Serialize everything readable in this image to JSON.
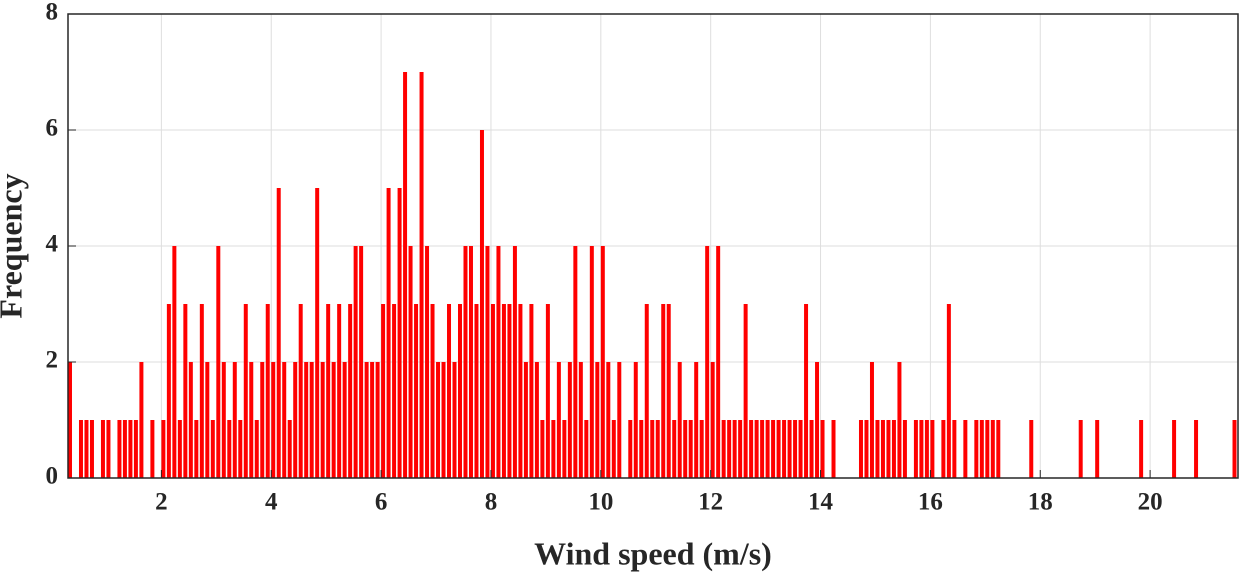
{
  "chart_data": {
    "type": "histogram",
    "xlabel": "Wind speed (m/s)",
    "ylabel": "Frequency",
    "color": "#ff0000",
    "bins": [
      0.3,
      0.4,
      0.5,
      0.6,
      0.7,
      0.8,
      0.9,
      1.0,
      1.1,
      1.2,
      1.3,
      1.4,
      1.5,
      1.6,
      1.7,
      1.8,
      1.9,
      2.0,
      2.1,
      2.2,
      2.3,
      2.4,
      2.5,
      2.6,
      2.7,
      2.8,
      2.9,
      3.0,
      3.1,
      3.2,
      3.3,
      3.4,
      3.5,
      3.6,
      3.7,
      3.8,
      3.9,
      4.0,
      4.1,
      4.2,
      4.3,
      4.4,
      4.5,
      4.6,
      4.7,
      4.8,
      4.9,
      5.0,
      5.1,
      5.2,
      5.3,
      5.4,
      5.5,
      5.6,
      5.7,
      5.8,
      5.9,
      6.0,
      6.1,
      6.2,
      6.3,
      6.4,
      6.5,
      6.6,
      6.7,
      6.8,
      6.9,
      7.0,
      7.1,
      7.2,
      7.3,
      7.4,
      7.5,
      7.6,
      7.7,
      7.8,
      7.9,
      8.0,
      8.1,
      8.2,
      8.3,
      8.4,
      8.5,
      8.6,
      8.7,
      8.8,
      8.9,
      9.0,
      9.1,
      9.2,
      9.3,
      9.4,
      9.5,
      9.6,
      9.7,
      9.8,
      9.9,
      10.0,
      10.1,
      10.2,
      10.3,
      10.4,
      10.5,
      10.6,
      10.7,
      10.8,
      10.9,
      11.0,
      11.1,
      11.2,
      11.3,
      11.4,
      11.5,
      11.6,
      11.7,
      11.8,
      11.9,
      12.0,
      12.1,
      12.2,
      12.3,
      12.4,
      12.5,
      12.6,
      12.7,
      12.8,
      12.9,
      13.0,
      13.1,
      13.2,
      13.3,
      13.4,
      13.5,
      13.6,
      13.7,
      13.8,
      13.9,
      14.0,
      14.1,
      14.2,
      14.3,
      14.4,
      14.5,
      14.6,
      14.7,
      14.8,
      14.9,
      15.0,
      15.1,
      15.2,
      15.3,
      15.4,
      15.5,
      15.6,
      15.7,
      15.8,
      15.9,
      16.0,
      16.1,
      16.2,
      16.3,
      16.4,
      16.5,
      16.6,
      16.7,
      16.8,
      16.9,
      17.0,
      17.1,
      17.2,
      17.3,
      17.4,
      17.5,
      17.6,
      17.7,
      17.8,
      17.9,
      18.0,
      18.1,
      18.2,
      18.3,
      18.4,
      18.5,
      18.6,
      18.7,
      18.8,
      18.9,
      19.0,
      19.1,
      19.2,
      19.3,
      19.4,
      19.5,
      19.6,
      19.7,
      19.8,
      19.9,
      20.0,
      20.1,
      20.2,
      20.3,
      20.4,
      20.5,
      20.6,
      20.7,
      20.8,
      20.9,
      21.0,
      21.1,
      21.2,
      21.3,
      21.4,
      21.5,
      21.6
    ],
    "counts": [
      2,
      0,
      1,
      1,
      1,
      0,
      1,
      1,
      0,
      1,
      1,
      1,
      1,
      2,
      0,
      1,
      0,
      1,
      3,
      4,
      1,
      3,
      2,
      1,
      3,
      2,
      1,
      4,
      2,
      1,
      2,
      1,
      3,
      2,
      1,
      2,
      3,
      2,
      5,
      2,
      1,
      2,
      3,
      2,
      2,
      5,
      2,
      3,
      2,
      3,
      2,
      3,
      4,
      4,
      2,
      2,
      2,
      3,
      5,
      3,
      5,
      7,
      4,
      3,
      7,
      4,
      3,
      2,
      2,
      3,
      2,
      3,
      4,
      4,
      3,
      6,
      4,
      3,
      4,
      3,
      3,
      4,
      3,
      2,
      3,
      2,
      1,
      3,
      1,
      2,
      1,
      2,
      4,
      2,
      1,
      4,
      2,
      4,
      2,
      1,
      2,
      0,
      1,
      2,
      1,
      3,
      1,
      1,
      3,
      3,
      1,
      2,
      1,
      1,
      2,
      1,
      4,
      2,
      4,
      1,
      1,
      1,
      1,
      3,
      1,
      1,
      1,
      1,
      1,
      1,
      1,
      1,
      1,
      1,
      3,
      1,
      2,
      1,
      0,
      1,
      0,
      0,
      0,
      0,
      1,
      1,
      2,
      1,
      1,
      1,
      1,
      2,
      1,
      0,
      1,
      1,
      1,
      1,
      0,
      1,
      3,
      1,
      0,
      1,
      0,
      1,
      1,
      1,
      1,
      1,
      0,
      0,
      0,
      0,
      0,
      1,
      0,
      0,
      0,
      0,
      0,
      0,
      0,
      0,
      1,
      0,
      0,
      1,
      0,
      0,
      0,
      0,
      0,
      0,
      0,
      1,
      0,
      0,
      0,
      0,
      0,
      1,
      0,
      0,
      0,
      1,
      0,
      0,
      0,
      0,
      0,
      0,
      1
    ],
    "xlim": [
      0.3,
      21.6
    ],
    "ylim": [
      0,
      8
    ],
    "xticks": [
      2,
      4,
      6,
      8,
      10,
      12,
      14,
      16,
      18,
      20
    ],
    "yticks": [
      0,
      2,
      4,
      6,
      8
    ],
    "grid": true
  }
}
